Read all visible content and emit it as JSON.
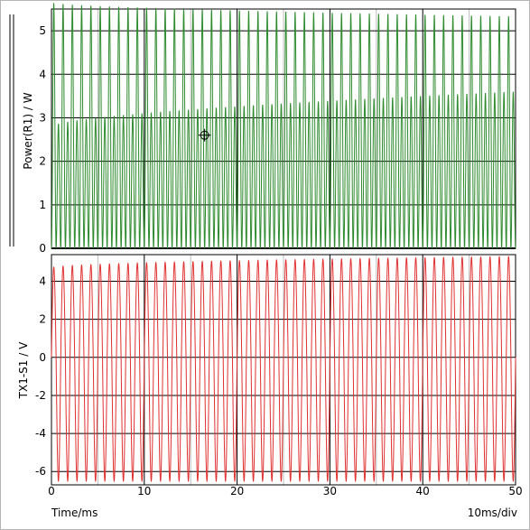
{
  "chart_data": [
    {
      "type": "line",
      "ylabel": "Power(R1) / W",
      "ylim": [
        0,
        5.5
      ],
      "yticks": [
        0,
        1,
        2,
        3,
        4,
        5
      ],
      "xlim": [
        0,
        50
      ],
      "series": [
        {
          "color": "#2e8b2e",
          "description": "rectified power waveform with alternating tall and short peaks at 2 kHz",
          "frequency_hz": 2000,
          "major_peak_start": 5.65,
          "major_peak_end": 5.33,
          "minor_peak_start": 2.8,
          "minor_peak_end": 3.6
        }
      ],
      "cursor": {
        "x": 16.5,
        "y": 2.6
      }
    },
    {
      "type": "line",
      "ylabel": "TX1-S1 / V",
      "ylim": [
        -6.7,
        5.4
      ],
      "yticks": [
        4,
        2,
        0,
        -2,
        -4,
        -6
      ],
      "xlim": [
        0,
        50
      ],
      "series": [
        {
          "color": "#e03030",
          "frequency_hz": 1000,
          "positive_peak_start": 4.7,
          "positive_peak_end": 5.3,
          "negative_peak": -6.5
        }
      ]
    }
  ],
  "x_axis": {
    "label": "Time/ms",
    "scale_note": "10ms/div",
    "tick_labels": [
      "0",
      "10",
      "20",
      "30",
      "40",
      "50"
    ]
  }
}
